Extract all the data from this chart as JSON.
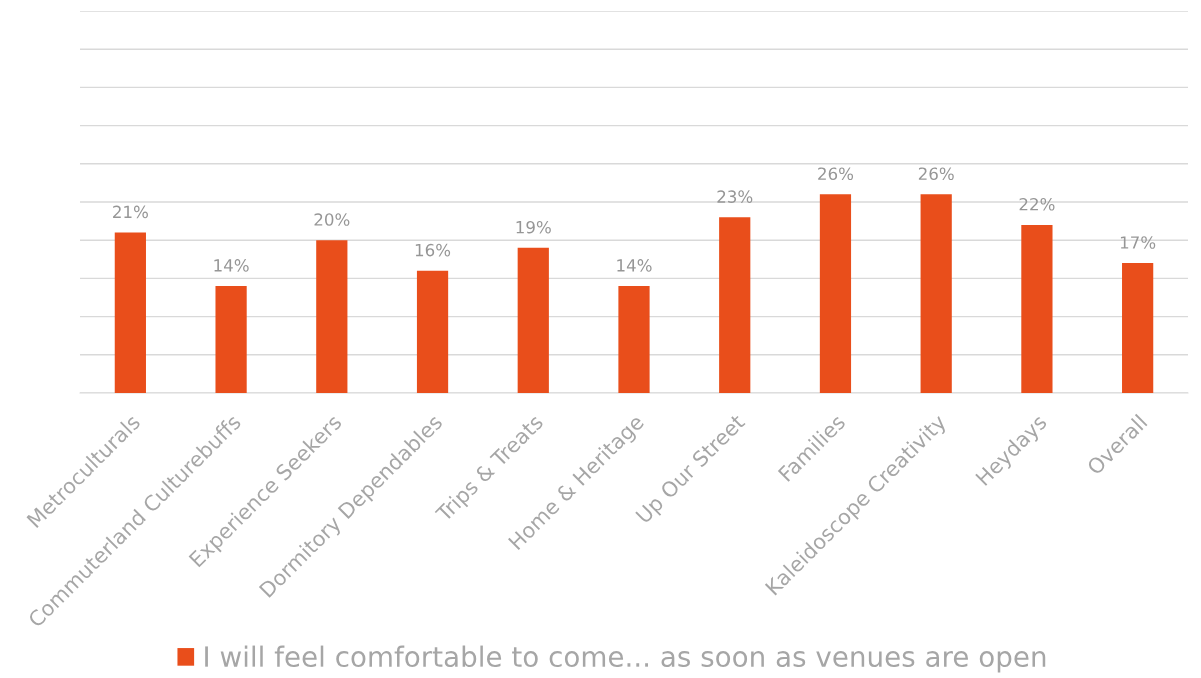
{
  "chart_data": {
    "type": "bar",
    "categories": [
      "Metroculturals",
      "Commuterland Culturebuffs",
      "Experience Seekers",
      "Dormitory Dependables",
      "Trips & Treats",
      "Home & Heritage",
      "Up Our Street",
      "Families",
      "Kaleidoscope Creativity",
      "Heydays",
      "Overall"
    ],
    "series": [
      {
        "name": "I will feel comfortable to come... as soon as venues are open",
        "color": "#e94e1b",
        "values": [
          21,
          14,
          20,
          16,
          19,
          14,
          23,
          26,
          26,
          22,
          17
        ],
        "value_labels": [
          "21%",
          "14%",
          "20%",
          "16%",
          "19%",
          "14%",
          "23%",
          "26%",
          "26%",
          "22%",
          "17%"
        ]
      }
    ],
    "ylim": [
      0,
      50
    ],
    "yticks": [
      {
        "value": 0,
        "label": null
      },
      {
        "value": 5,
        "label": null
      },
      {
        "value": 10,
        "label": null
      },
      {
        "value": 15,
        "label": null
      },
      {
        "value": 20,
        "label": null
      },
      {
        "value": 25,
        "label": null
      },
      {
        "value": 30,
        "label": null
      },
      {
        "value": 35,
        "label": null
      },
      {
        "value": 40,
        "label": null
      },
      {
        "value": 45,
        "label": null
      },
      {
        "value": 50,
        "label": null
      }
    ],
    "grid": "y",
    "legend": "bottom",
    "tick_labels": "x"
  }
}
